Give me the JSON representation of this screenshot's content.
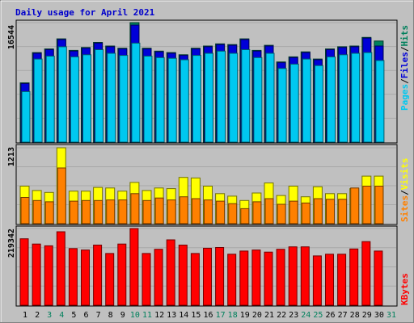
{
  "chart_data": {
    "type": "bar",
    "title": "Daily usage for April 2021",
    "categories": [
      "1",
      "2",
      "3",
      "4",
      "5",
      "6",
      "7",
      "8",
      "9",
      "10",
      "11",
      "12",
      "13",
      "14",
      "15",
      "16",
      "17",
      "18",
      "19",
      "20",
      "21",
      "22",
      "23",
      "24",
      "25",
      "26",
      "27",
      "28",
      "29",
      "30",
      "31"
    ],
    "weekend_days": [
      "3",
      "4",
      "10",
      "11",
      "17",
      "18",
      "24",
      "25",
      "31"
    ],
    "panels": {
      "top": {
        "max_label": "16544",
        "ymax": 16544,
        "legend": {
          "pages": "Pages",
          "sep1": "/",
          "files": "Files",
          "sep2": "/",
          "hits": "Hits"
        },
        "series": [
          {
            "name": "Hits",
            "color": "#00805C",
            "values": [
              8200,
              12400,
              12900,
              14300,
              12700,
              13100,
              13800,
              13300,
              13000,
              16544,
              13000,
              12600,
              12400,
              12100,
              13000,
              13300,
              13600,
              13500,
              14300,
              12700,
              13400,
              11100,
              11800,
              12500,
              11500,
              12900,
              13200,
              13300,
              14500,
              14000,
              null
            ]
          },
          {
            "name": "Files",
            "color": "#0000D8",
            "values": [
              8100,
              12300,
              12800,
              14200,
              12600,
              13000,
              13700,
              13200,
              12900,
              16200,
              12900,
              12500,
              12300,
              12000,
              12900,
              13200,
              13500,
              13400,
              14200,
              12600,
              13300,
              11000,
              11700,
              12400,
              11400,
              12800,
              13100,
              13200,
              14400,
              13300,
              null
            ]
          },
          {
            "name": "Pages",
            "color": "#00C8F0",
            "values": [
              7000,
              11500,
              11900,
              13200,
              11800,
              12100,
              12800,
              12300,
              12000,
              13700,
              11900,
              11700,
              11600,
              11400,
              12000,
              12300,
              12600,
              12300,
              12800,
              11700,
              12300,
              10200,
              10800,
              11500,
              10600,
              11800,
              12100,
              12300,
              12400,
              11300,
              null
            ]
          }
        ]
      },
      "middle": {
        "max_label": "1213",
        "ymax": 1213,
        "legend": {
          "sites": "Sites",
          "sep1": "/",
          "visits": "Visits"
        },
        "series": [
          {
            "name": "Visits",
            "color": "#FFFF00",
            "values": [
              600,
              530,
              500,
              1213,
              520,
              520,
              580,
              570,
              520,
              660,
              530,
              570,
              560,
              740,
              730,
              600,
              480,
              440,
              370,
              490,
              650,
              450,
              600,
              430,
              590,
              480,
              480,
              560,
              760,
              760,
              null
            ]
          },
          {
            "name": "Sites",
            "color": "#FF8000",
            "values": [
              420,
              370,
              350,
              890,
              360,
              370,
              370,
              380,
              380,
              480,
              370,
              410,
              380,
              430,
              400,
              380,
              360,
              320,
              240,
              350,
              400,
              310,
              360,
              330,
              400,
              390,
              390,
              570,
              600,
              600,
              null
            ]
          }
        ]
      },
      "bottom": {
        "max_label": "219342",
        "ymax": 219342,
        "legend": {
          "kbytes": "KBytes"
        },
        "series": [
          {
            "name": "KBytes",
            "color": "#FF0000",
            "values": [
              190000,
              175000,
              170000,
              210000,
              162000,
              158000,
              172000,
              148000,
              175000,
              219342,
              148000,
              160000,
              187000,
              172000,
              148000,
              163000,
              165000,
              146000,
              155000,
              158000,
              152000,
              160000,
              167000,
              167000,
              141000,
              146000,
              146000,
              161000,
              182000,
              155000,
              null
            ]
          }
        ]
      }
    }
  }
}
